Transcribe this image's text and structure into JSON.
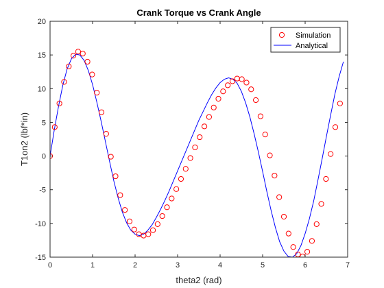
{
  "chart_data": {
    "type": "line",
    "title": "Crank Torque vs Crank Angle",
    "xlabel": "theta2 (rad)",
    "ylabel": "T1on2 (lbf*in)",
    "xlim": [
      0,
      7
    ],
    "ylim": [
      -15,
      20
    ],
    "xticks": [
      "0",
      "1",
      "2",
      "3",
      "4",
      "5",
      "6",
      "7"
    ],
    "yticks": [
      "-15",
      "-10",
      "-5",
      "0",
      "5",
      "10",
      "15",
      "20"
    ],
    "grid": false,
    "legend_position": "top-right",
    "series": [
      {
        "name": "Simulation",
        "style": "markers",
        "marker": "open-circle",
        "color": "#ff0000",
        "x": [
          0.0,
          0.11,
          0.22,
          0.33,
          0.44,
          0.55,
          0.66,
          0.77,
          0.88,
          0.99,
          1.1,
          1.21,
          1.32,
          1.43,
          1.54,
          1.65,
          1.76,
          1.87,
          1.98,
          2.09,
          2.2,
          2.31,
          2.42,
          2.53,
          2.64,
          2.75,
          2.86,
          2.97,
          3.08,
          3.19,
          3.3,
          3.41,
          3.52,
          3.63,
          3.74,
          3.85,
          3.96,
          4.07,
          4.18,
          4.29,
          4.4,
          4.51,
          4.62,
          4.73,
          4.84,
          4.95,
          5.06,
          5.17,
          5.28,
          5.39,
          5.5,
          5.61,
          5.72,
          5.83,
          5.94,
          6.05,
          6.16,
          6.27,
          6.38,
          6.49,
          6.6,
          6.71,
          6.82
        ],
        "y": [
          0.0,
          4.3,
          7.8,
          11.0,
          13.3,
          14.9,
          15.5,
          15.2,
          14.0,
          12.1,
          9.4,
          6.5,
          3.3,
          -0.1,
          -3.0,
          -5.8,
          -8.0,
          -9.7,
          -10.9,
          -11.6,
          -11.8,
          -11.6,
          -11.0,
          -10.1,
          -8.9,
          -7.6,
          -6.3,
          -4.9,
          -3.4,
          -1.9,
          -0.3,
          1.3,
          2.8,
          4.4,
          5.8,
          7.2,
          8.5,
          9.6,
          10.5,
          11.1,
          11.5,
          11.4,
          10.9,
          9.9,
          8.3,
          5.9,
          3.2,
          0.1,
          -2.9,
          -6.1,
          -9.0,
          -11.5,
          -13.5,
          -14.6,
          -14.9,
          -14.2,
          -12.6,
          -10.1,
          -7.1,
          -3.4,
          0.3,
          4.3,
          7.8
        ]
      },
      {
        "name": "Analytical",
        "style": "line",
        "color": "#0000ff",
        "x": [
          0.0,
          0.1,
          0.2,
          0.3,
          0.4,
          0.5,
          0.6,
          0.7,
          0.8,
          0.9,
          1.0,
          1.1,
          1.2,
          1.3,
          1.4,
          1.5,
          1.6,
          1.7,
          1.8,
          1.9,
          2.0,
          2.1,
          2.2,
          2.3,
          2.4,
          2.5,
          2.6,
          2.7,
          2.8,
          2.9,
          3.0,
          3.1,
          3.2,
          3.3,
          3.4,
          3.5,
          3.6,
          3.7,
          3.8,
          3.9,
          4.0,
          4.1,
          4.2,
          4.3,
          4.4,
          4.5,
          4.6,
          4.7,
          4.8,
          4.9,
          5.0,
          5.1,
          5.2,
          5.3,
          5.4,
          5.5,
          5.6,
          5.7,
          5.8,
          5.9,
          6.0,
          6.1,
          6.2,
          6.3,
          6.4,
          6.5,
          6.6,
          6.7,
          6.8,
          6.9
        ],
        "y": [
          0.0,
          3.9,
          7.4,
          10.5,
          12.9,
          14.4,
          15.1,
          15.0,
          14.2,
          12.7,
          10.6,
          8.0,
          5.2,
          2.2,
          -0.8,
          -3.7,
          -6.2,
          -8.3,
          -9.9,
          -11.0,
          -11.6,
          -11.8,
          -11.6,
          -11.0,
          -10.2,
          -9.1,
          -7.9,
          -6.6,
          -5.2,
          -3.7,
          -2.2,
          -0.7,
          0.8,
          2.3,
          3.8,
          5.3,
          6.6,
          7.9,
          9.1,
          10.1,
          10.9,
          11.4,
          11.6,
          11.4,
          10.8,
          9.6,
          7.9,
          5.8,
          3.3,
          0.6,
          -2.3,
          -5.3,
          -8.1,
          -10.6,
          -12.7,
          -14.1,
          -14.9,
          -15.0,
          -14.5,
          -13.3,
          -11.5,
          -9.3,
          -6.7,
          -3.6,
          -0.4,
          2.9,
          6.1,
          9.2,
          11.8,
          14.0
        ]
      }
    ]
  }
}
